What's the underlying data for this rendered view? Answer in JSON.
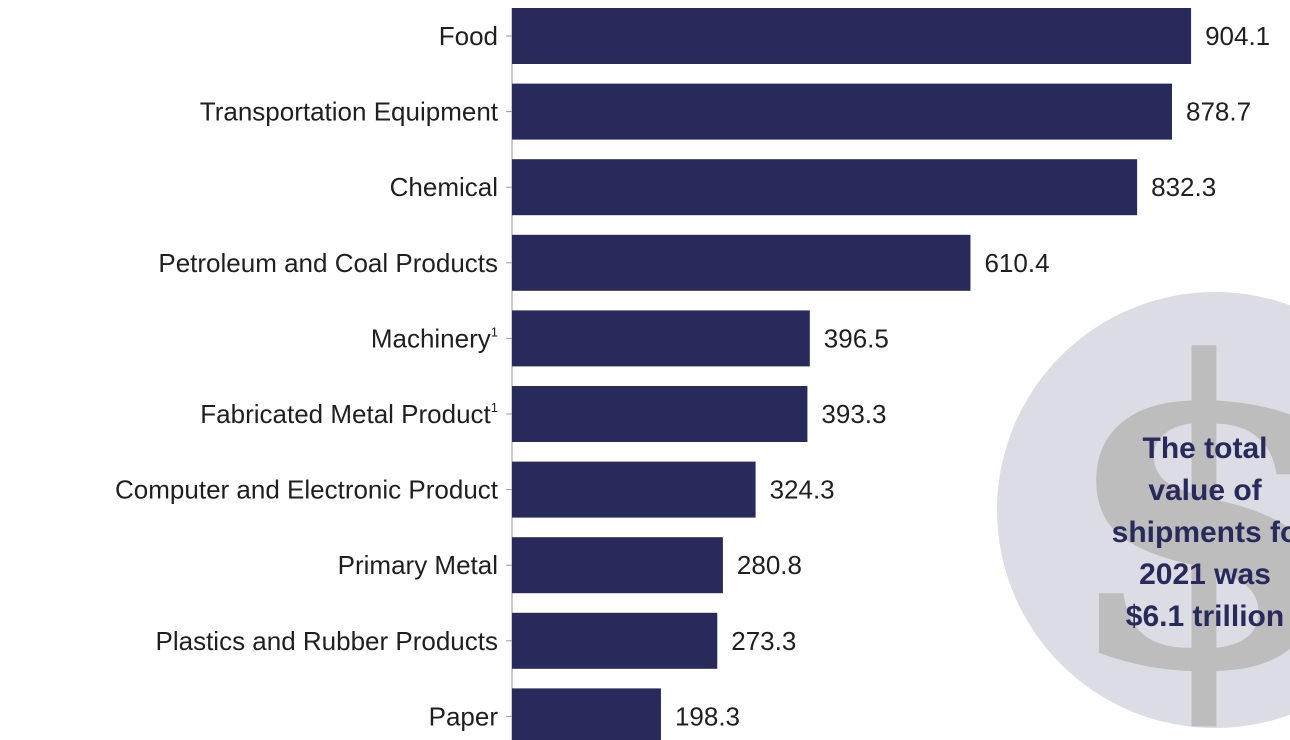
{
  "chart_data": {
    "type": "bar",
    "orientation": "horizontal",
    "categories": [
      "Food",
      "Transportation Equipment",
      "Chemical",
      "Petroleum and Coal Products",
      "Machinery",
      "Fabricated Metal Product",
      "Computer and Electronic Product",
      "Primary Metal",
      "Plastics and Rubber Products",
      "Paper"
    ],
    "category_superscripts": [
      "",
      "",
      "",
      "",
      "1",
      "1",
      "",
      "",
      "",
      ""
    ],
    "values": [
      904.1,
      878.7,
      832.3,
      610.4,
      396.5,
      393.3,
      324.3,
      280.8,
      273.3,
      198.3
    ],
    "value_labels": [
      "904.1",
      "878.7",
      "832.3",
      "610.4",
      "396.5",
      "393.3",
      "324.3",
      "280.8",
      "273.3",
      "198.3"
    ],
    "bar_color": "#272a5b",
    "grid": false,
    "legend": "none"
  },
  "callout": {
    "lines": [
      "The total",
      "value of",
      "shipments fo",
      "2021 was",
      "$6.1 trillion"
    ],
    "symbol": "$",
    "circle_color": "#dcdce4",
    "text_color": "#272a5b"
  }
}
